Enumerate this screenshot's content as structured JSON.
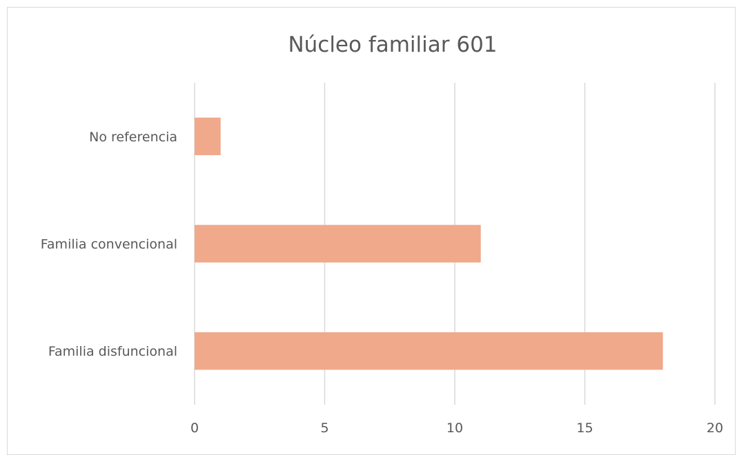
{
  "chart_data": {
    "type": "bar",
    "orientation": "horizontal",
    "title": "Núcleo familiar 601",
    "categories": [
      "No referencia",
      "Familia convencional",
      "Familia disfuncional"
    ],
    "values": [
      1,
      11,
      18
    ],
    "xlim": [
      0,
      20
    ],
    "x_ticks": [
      "0",
      "5",
      "10",
      "15",
      "20"
    ],
    "grid": true,
    "legend": "none",
    "bar_color": "#F0A98A",
    "grid_color": "#D9D9D9",
    "text_color": "#595959"
  }
}
